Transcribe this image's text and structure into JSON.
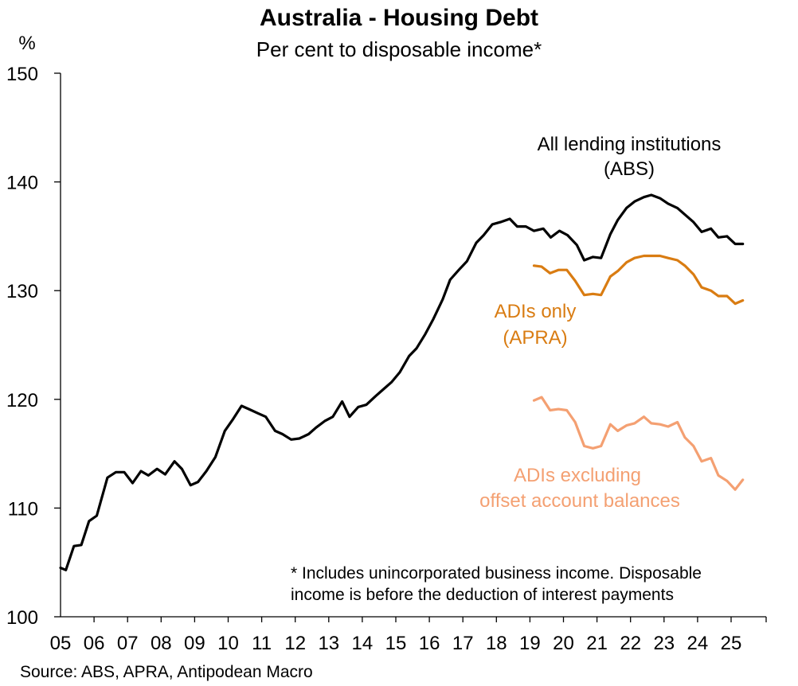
{
  "chart_data": {
    "type": "line",
    "title": "Australia - Housing Debt",
    "subtitle": "Per cent to disposable income*",
    "y_unit_label": "%",
    "ylim": [
      100,
      150
    ],
    "yticks": [
      "100",
      "110",
      "120",
      "130",
      "140",
      "150"
    ],
    "xlim": [
      2005,
      2025.9
    ],
    "xticks": [
      "05",
      "06",
      "07",
      "08",
      "09",
      "10",
      "11",
      "12",
      "13",
      "14",
      "15",
      "16",
      "17",
      "18",
      "19",
      "20",
      "21",
      "22",
      "23",
      "24",
      "25"
    ],
    "grid": false,
    "series": [
      {
        "name": "All lending institutions (ABS)",
        "color": "#000000",
        "x": [
          2005.0,
          2005.16,
          2005.4,
          2005.62,
          2005.85,
          2006.08,
          2006.4,
          2006.65,
          2006.9,
          2007.15,
          2007.4,
          2007.62,
          2007.88,
          2008.12,
          2008.4,
          2008.62,
          2008.88,
          2009.1,
          2009.35,
          2009.62,
          2009.9,
          2010.15,
          2010.4,
          2010.62,
          2010.9,
          2011.12,
          2011.4,
          2011.62,
          2011.88,
          2012.12,
          2012.4,
          2012.62,
          2012.88,
          2013.12,
          2013.4,
          2013.62,
          2013.88,
          2014.12,
          2014.4,
          2014.62,
          2014.88,
          2015.12,
          2015.4,
          2015.62,
          2015.88,
          2016.12,
          2016.4,
          2016.62,
          2016.88,
          2017.12,
          2017.4,
          2017.62,
          2017.88,
          2018.12,
          2018.4,
          2018.62,
          2018.88,
          2019.12,
          2019.4,
          2019.62,
          2019.88,
          2020.12,
          2020.4,
          2020.62,
          2020.88,
          2021.12,
          2021.4,
          2021.62,
          2021.88,
          2022.12,
          2022.4,
          2022.62,
          2022.88,
          2023.12,
          2023.4,
          2023.62,
          2023.88,
          2024.12,
          2024.4,
          2024.62,
          2024.88,
          2025.12,
          2025.35
        ],
        "values": [
          104.5,
          104.3,
          106.5,
          106.6,
          108.8,
          109.3,
          112.8,
          113.3,
          113.3,
          112.3,
          113.4,
          113.0,
          113.6,
          113.1,
          114.3,
          113.6,
          112.1,
          112.4,
          113.4,
          114.7,
          117.1,
          118.2,
          119.4,
          119.1,
          118.7,
          118.4,
          117.1,
          116.8,
          116.3,
          116.4,
          116.8,
          117.4,
          118.0,
          118.4,
          119.8,
          118.4,
          119.3,
          119.5,
          120.3,
          120.9,
          121.6,
          122.5,
          124.0,
          124.7,
          126.0,
          127.4,
          129.2,
          131.0,
          131.9,
          132.7,
          134.4,
          135.1,
          136.1,
          136.3,
          136.6,
          135.9,
          135.9,
          135.5,
          135.7,
          134.9,
          135.5,
          135.1,
          134.2,
          132.8,
          133.1,
          133.0,
          135.2,
          136.5,
          137.6,
          138.2,
          138.6,
          138.8,
          138.5,
          138.0,
          137.6,
          137.0,
          136.3,
          135.4,
          135.7,
          134.9,
          135.0,
          134.3,
          134.3
        ]
      },
      {
        "name": "ADIs only (APRA)",
        "color": "#d97c12",
        "x": [
          2019.12,
          2019.35,
          2019.6,
          2019.85,
          2020.1,
          2020.35,
          2020.62,
          2020.88,
          2021.12,
          2021.4,
          2021.62,
          2021.88,
          2022.12,
          2022.4,
          2022.62,
          2022.88,
          2023.12,
          2023.4,
          2023.62,
          2023.88,
          2024.12,
          2024.4,
          2024.62,
          2024.88,
          2025.12,
          2025.35
        ],
        "values": [
          132.3,
          132.2,
          131.6,
          131.9,
          131.9,
          130.9,
          129.6,
          129.7,
          129.6,
          131.3,
          131.8,
          132.6,
          133.0,
          133.2,
          133.2,
          133.2,
          133.0,
          132.8,
          132.3,
          131.5,
          130.3,
          130.0,
          129.5,
          129.5,
          128.8,
          129.1
        ]
      },
      {
        "name": "ADIs excluding offset account balances",
        "color": "#f4a072",
        "x": [
          2019.12,
          2019.35,
          2019.6,
          2019.85,
          2020.1,
          2020.35,
          2020.62,
          2020.88,
          2021.12,
          2021.4,
          2021.62,
          2021.88,
          2022.12,
          2022.4,
          2022.62,
          2022.88,
          2023.12,
          2023.4,
          2023.62,
          2023.88,
          2024.12,
          2024.4,
          2024.62,
          2024.88,
          2025.12,
          2025.35
        ],
        "values": [
          119.9,
          120.2,
          119.0,
          119.1,
          119.0,
          117.9,
          115.7,
          115.5,
          115.7,
          117.7,
          117.1,
          117.6,
          117.8,
          118.4,
          117.8,
          117.7,
          117.5,
          117.9,
          116.5,
          115.7,
          114.3,
          114.6,
          113.0,
          112.5,
          111.7,
          112.6
        ]
      }
    ],
    "annotations": [
      {
        "lines": [
          "All lending institutions",
          "(ABS)"
        ],
        "color": "#000000"
      },
      {
        "lines": [
          "ADIs only",
          "(APRA)"
        ],
        "color": "#d97c12"
      },
      {
        "lines": [
          "ADIs excluding",
          "offset account balances"
        ],
        "color": "#f4a072"
      },
      {
        "lines": [
          "* Includes unincorporated business income. Disposable",
          "income is before the deduction of interest payments"
        ],
        "color": "#000000"
      }
    ],
    "source": "Source: ABS, APRA, Antipodean Macro"
  }
}
